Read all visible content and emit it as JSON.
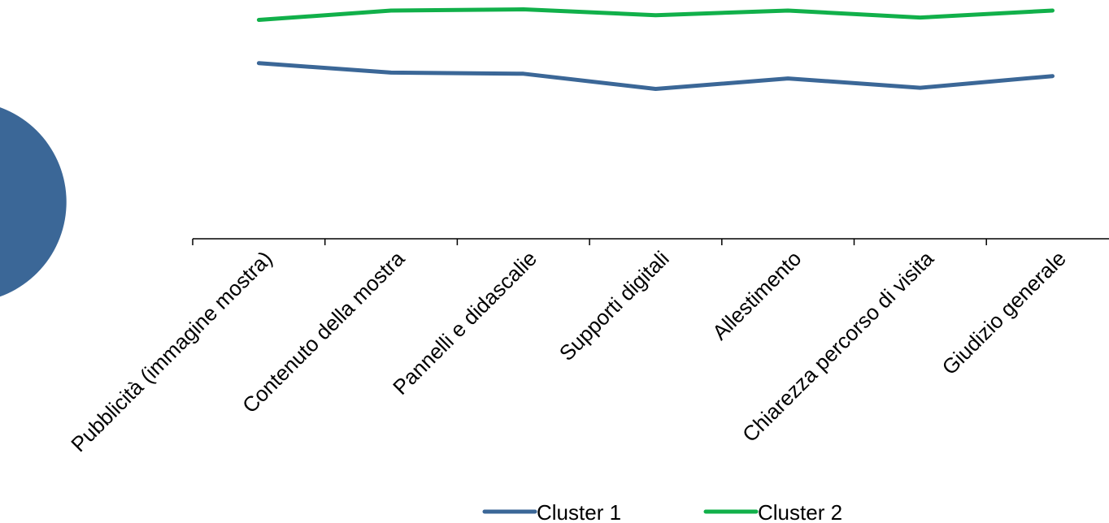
{
  "chart_data": {
    "type": "line",
    "categories": [
      "Pubblicità (immagine mostra)",
      "Contenuto della mostra",
      "Pannelli e didascalie",
      "Supporti digitali",
      "Allestimento",
      "Chiarezza percorso di visita",
      "Giudizio generale"
    ],
    "series": [
      {
        "name": "Cluster 1",
        "color": "#3b6797",
        "values": [
          7.5,
          7.1,
          7.05,
          6.4,
          6.85,
          6.45,
          6.95
        ]
      },
      {
        "name": "Cluster 2",
        "color": "#11b04a",
        "values": [
          9.35,
          9.75,
          9.8,
          9.55,
          9.75,
          9.45,
          9.75
        ]
      }
    ],
    "ylim": [
      0,
      10.2
    ],
    "grid": false,
    "legend_position": "bottom",
    "title": "",
    "xlabel": "",
    "ylabel": ""
  },
  "decor": {
    "partial_circle_colors": [
      "#3b6797",
      "#11b04a"
    ]
  }
}
